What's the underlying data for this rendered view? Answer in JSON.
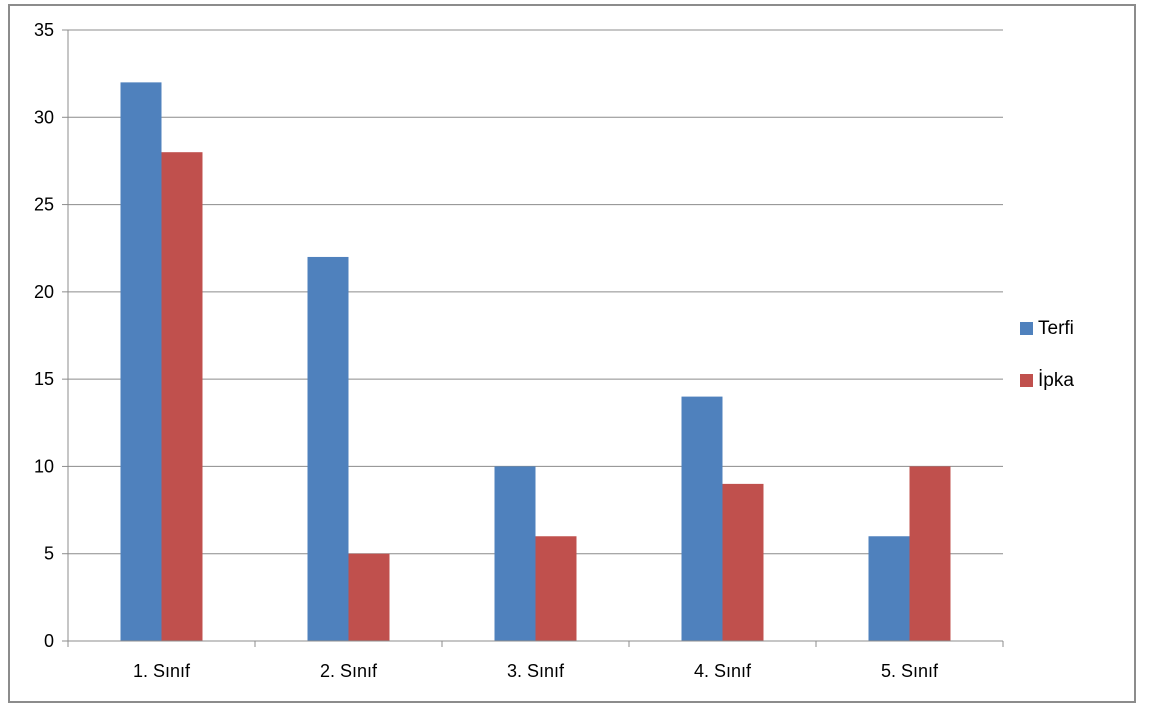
{
  "chart_data": {
    "type": "bar",
    "title": "",
    "xlabel": "",
    "ylabel": "",
    "categories": [
      "1. Sınıf",
      "2. Sınıf",
      "3. Sınıf",
      "4. Sınıf",
      "5. Sınıf"
    ],
    "series": [
      {
        "name": "Terfi",
        "color": "#4f81bd",
        "values": [
          32,
          22,
          10,
          14,
          6
        ]
      },
      {
        "name": "İpka",
        "color": "#c0504d",
        "values": [
          28,
          5,
          6,
          9,
          10
        ]
      }
    ],
    "ylim": [
      0,
      35
    ],
    "yticks": [
      "0",
      "5",
      "10",
      "15",
      "20",
      "25",
      "30",
      "35"
    ],
    "grid": true,
    "legend_position": "right"
  }
}
